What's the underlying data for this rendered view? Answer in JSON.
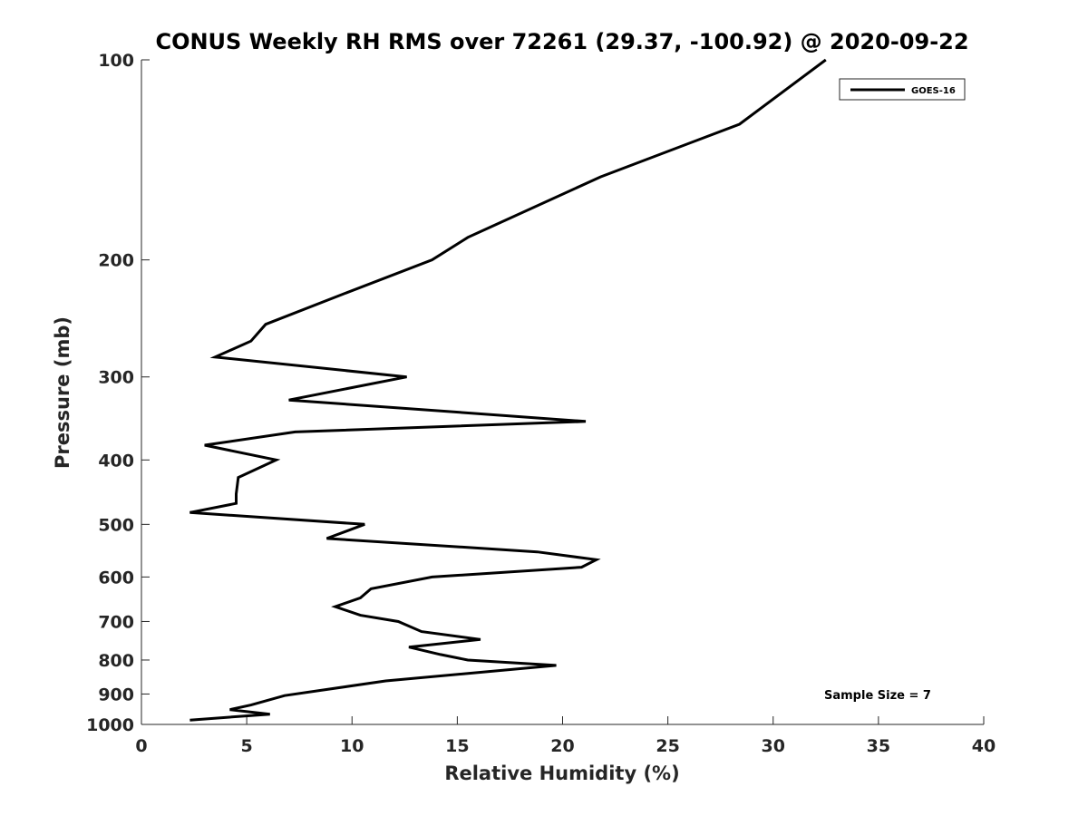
{
  "chart_data": {
    "type": "line",
    "title": "CONUS Weekly RH RMS over 72261 (29.37, -100.92) @ 2020-09-22",
    "xlabel": "Relative Humidity (%)",
    "ylabel": "Pressure (mb)",
    "xlim": [
      0,
      40
    ],
    "ylim": [
      100,
      1000
    ],
    "y_scale": "log",
    "y_reversed": true,
    "xticks": [
      0,
      5,
      10,
      15,
      20,
      25,
      30,
      35,
      40
    ],
    "yticks": [
      100,
      200,
      300,
      400,
      500,
      600,
      700,
      800,
      900,
      1000
    ],
    "grid": false,
    "legend_position": "top-right",
    "series": [
      {
        "name": "GOES-16",
        "color": "#000000",
        "points": [
          [
            32.5,
            100
          ],
          [
            28.4,
            125
          ],
          [
            21.8,
            150
          ],
          [
            15.5,
            185
          ],
          [
            13.8,
            200
          ],
          [
            9.6,
            225
          ],
          [
            5.9,
            250
          ],
          [
            5.2,
            265
          ],
          [
            3.5,
            280
          ],
          [
            12.6,
            300
          ],
          [
            7.0,
            325
          ],
          [
            21.1,
            350
          ],
          [
            7.3,
            363
          ],
          [
            3.0,
            380
          ],
          [
            6.4,
            400
          ],
          [
            4.6,
            425
          ],
          [
            4.5,
            450
          ],
          [
            4.5,
            465
          ],
          [
            2.3,
            480
          ],
          [
            10.6,
            500
          ],
          [
            8.8,
            525
          ],
          [
            18.8,
            550
          ],
          [
            21.6,
            565
          ],
          [
            20.9,
            580
          ],
          [
            13.8,
            600
          ],
          [
            10.9,
            625
          ],
          [
            10.4,
            645
          ],
          [
            9.2,
            665
          ],
          [
            10.4,
            685
          ],
          [
            12.2,
            700
          ],
          [
            13.3,
            725
          ],
          [
            16.1,
            745
          ],
          [
            12.7,
            765
          ],
          [
            14.2,
            785
          ],
          [
            15.5,
            800
          ],
          [
            19.7,
            815
          ],
          [
            11.6,
            860
          ],
          [
            6.8,
            905
          ],
          [
            5.2,
            935
          ],
          [
            4.2,
            950
          ],
          [
            6.1,
            965
          ],
          [
            2.3,
            985
          ]
        ]
      }
    ],
    "annotation": "Sample Size = 7"
  }
}
